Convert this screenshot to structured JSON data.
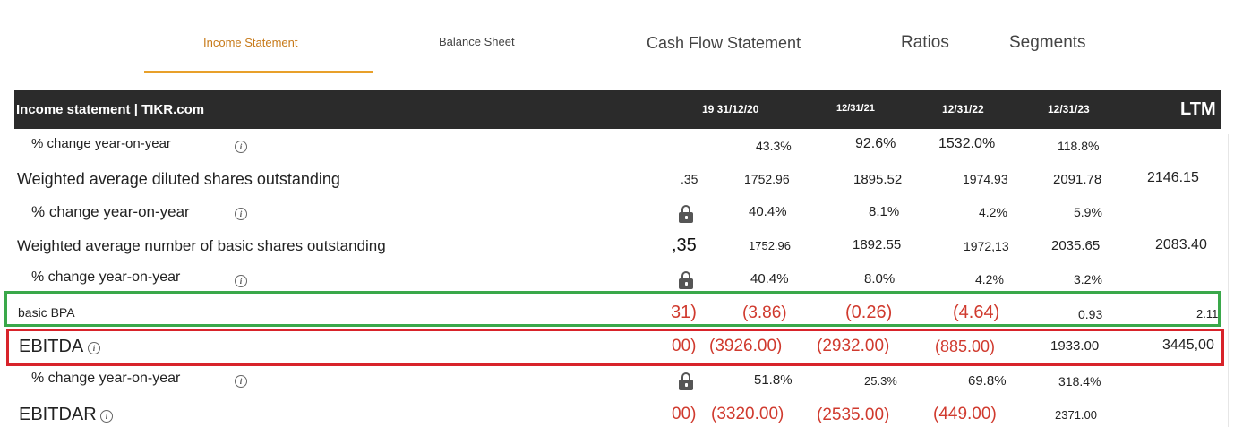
{
  "tabs": [
    {
      "label": "Income Statement",
      "active": true
    },
    {
      "label": "Balance Sheet",
      "active": false
    },
    {
      "label": "Cash Flow Statement",
      "active": false
    },
    {
      "label": "Ratios",
      "active": false
    },
    {
      "label": "Segments",
      "active": false
    }
  ],
  "table": {
    "title": "Income statement | TIKR.com",
    "columns": [
      "19 31/12/20",
      "12/31/21",
      "12/31/22",
      "12/31/23",
      "LTM"
    ],
    "rows": {
      "pct_change_1": {
        "label": "% change year-on-year",
        "values": [
          "43.3%",
          "92.6%",
          "1532.0%",
          "118.8%"
        ]
      },
      "wavg_diluted": {
        "label": "Weighted average diluted shares outstanding",
        "partial": ".35",
        "values": [
          "1752.96",
          "1895.52",
          "1974.93",
          "2091.78",
          "2146.15"
        ]
      },
      "pct_change_2": {
        "label": "% change year-on-year",
        "values": [
          "40.4%",
          "8.1%",
          "4.2%",
          "5.9%"
        ]
      },
      "wavg_basic": {
        "label": "Weighted average number of basic shares outstanding",
        "partial": ",35",
        "values": [
          "1752.96",
          "1892.55",
          "1972,13",
          "2035.65",
          "2083.40"
        ]
      },
      "pct_change_3": {
        "label": "% change year-on-year",
        "values": [
          "40.4%",
          "8.0%",
          "4.2%",
          "3.2%"
        ]
      },
      "basic_bpa": {
        "label": "basic BPA",
        "partial": "31)",
        "values": [
          "(3.86)",
          "(0.26)",
          "(4.64)",
          "0.93",
          "2.11"
        ]
      },
      "ebitda": {
        "label": "EBITDA",
        "partial": "00)",
        "values": [
          "(3926.00)",
          "(2932.00)",
          "(885.00)",
          "1933.00",
          "3445,00"
        ]
      },
      "pct_change_4": {
        "label": "% change year-on-year",
        "values": [
          "51.8%",
          "25.3%",
          "69.8%",
          "318.4%"
        ]
      },
      "ebitdar": {
        "label": "EBITDAR",
        "partial": "00)",
        "values": [
          "(3320.00)",
          "(2535.00)",
          "(449.00)",
          "2371.00"
        ]
      }
    }
  },
  "icons": {
    "info": "info-icon",
    "lock": "lock-icon"
  },
  "colors": {
    "accent_tab": "#c77a1a",
    "underline": "#e8a02a",
    "header_bg": "#2b2b2b",
    "negative": "#d03a2e",
    "highlight_green": "#3aa84a",
    "highlight_red": "#d8232a"
  }
}
